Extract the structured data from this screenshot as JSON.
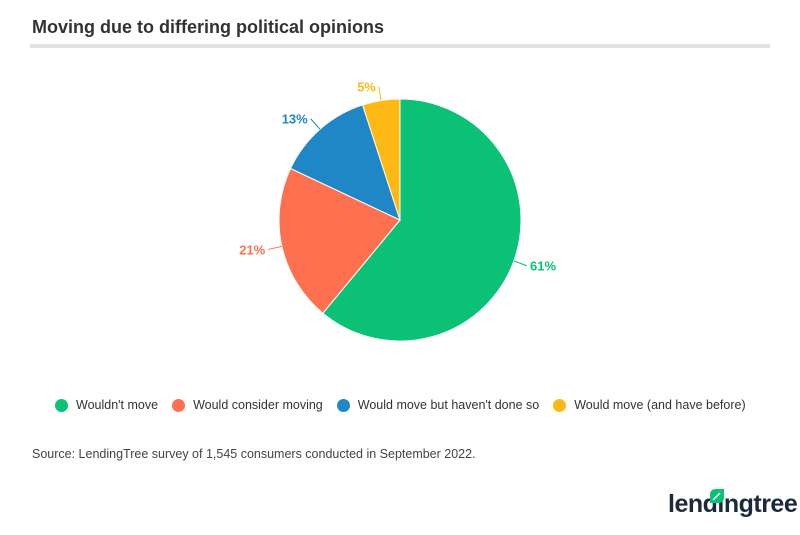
{
  "chart_data": {
    "type": "pie",
    "title": "Moving due to differing political opinions",
    "slices": [
      {
        "label": "Wouldn't move",
        "value": 61,
        "display": "61%",
        "color": "#0bc176"
      },
      {
        "label": "Would consider moving",
        "value": 21,
        "display": "21%",
        "color": "#ff7050"
      },
      {
        "label": "Would move but haven't done so",
        "value": 13,
        "display": "13%",
        "color": "#1f87c6"
      },
      {
        "label": "Would move (and have before)",
        "value": 5,
        "display": "5%",
        "color": "#fdb813"
      }
    ],
    "legend_position": "bottom",
    "source": "Source: LendingTree survey of 1,545 consumers conducted in September 2022."
  },
  "brand": {
    "logo_text": "lendingtree",
    "logo_color": "#0bc176"
  }
}
